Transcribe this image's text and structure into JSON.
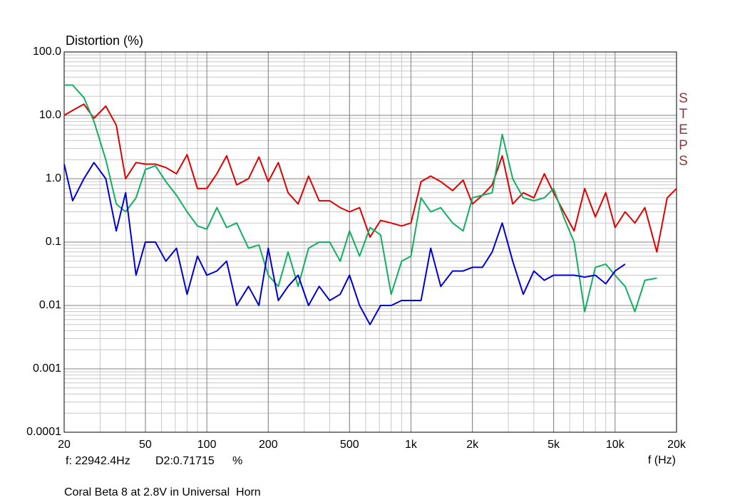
{
  "chart_data": {
    "type": "line",
    "title": "Distortion (%)",
    "x_label": "f (Hz)",
    "watermark": "STEPS",
    "cursor_freq": "f: 22942.4Hz",
    "cursor_value": "D2:0.71715",
    "cursor_unit": "%",
    "caption": "Coral Beta 8 at 2.8V in Universal  Horn",
    "x_log": true,
    "y_log": true,
    "grid": true,
    "minor_grid": true,
    "xlim": [
      20,
      20000
    ],
    "ylim": [
      0.0001,
      100
    ],
    "xticks": [
      20,
      50,
      100,
      200,
      500,
      {
        "value": 1000,
        "label": "1k"
      },
      {
        "value": 2000,
        "label": "2k"
      },
      {
        "value": 5000,
        "label": "5k"
      },
      {
        "value": 10000,
        "label": "10k"
      },
      {
        "value": 20000,
        "label": "20k"
      }
    ],
    "yticks": [
      0.0001,
      0.001,
      0.01,
      0.1,
      {
        "value": 1,
        "label": "1.0"
      },
      {
        "value": 10,
        "label": "10.0"
      },
      {
        "value": 100,
        "label": "100.0"
      }
    ],
    "x": [
      20,
      22,
      25,
      28,
      32,
      36,
      40,
      45,
      50,
      56,
      63,
      71,
      80,
      90,
      100,
      112,
      125,
      140,
      160,
      180,
      200,
      224,
      250,
      280,
      315,
      355,
      400,
      450,
      500,
      560,
      630,
      710,
      800,
      900,
      1000,
      1120,
      1250,
      1400,
      1600,
      1800,
      2000,
      2240,
      2500,
      2800,
      3150,
      3550,
      4000,
      4500,
      5000,
      5600,
      6300,
      7100,
      8000,
      9000,
      10000,
      11200,
      12500,
      14000,
      16000,
      18000,
      20000
    ],
    "series": [
      {
        "color": "#e00000",
        "values": [
          10,
          12,
          15,
          9,
          14,
          7,
          1.0,
          1.8,
          1.7,
          1.7,
          1.5,
          1.2,
          2.4,
          0.7,
          0.7,
          1.2,
          2.3,
          0.8,
          1.0,
          2.2,
          0.9,
          1.8,
          0.6,
          0.4,
          1.1,
          0.45,
          0.45,
          0.35,
          0.3,
          0.35,
          0.12,
          0.22,
          0.2,
          0.18,
          0.2,
          0.9,
          1.1,
          0.9,
          0.65,
          0.95,
          0.4,
          0.55,
          0.8,
          2.3,
          0.4,
          0.6,
          0.5,
          1.2,
          0.6,
          0.3,
          0.15,
          0.7,
          0.25,
          0.6,
          0.17,
          0.3,
          0.2,
          0.35,
          0.07,
          0.5,
          0.7
        ]
      },
      {
        "color": "#10b060",
        "values": [
          30,
          30,
          19,
          8,
          2,
          0.4,
          0.3,
          0.5,
          1.4,
          1.6,
          0.9,
          0.55,
          0.3,
          0.18,
          0.16,
          0.35,
          0.17,
          0.2,
          0.08,
          0.09,
          0.03,
          0.02,
          0.07,
          0.02,
          0.08,
          0.1,
          0.1,
          0.05,
          0.15,
          0.06,
          0.17,
          0.13,
          0.015,
          0.05,
          0.06,
          0.5,
          0.3,
          0.35,
          0.2,
          0.15,
          0.5,
          0.55,
          0.6,
          5.0,
          1.0,
          0.5,
          0.45,
          0.5,
          0.7,
          0.25,
          0.1,
          0.008,
          0.04,
          0.045,
          0.03,
          0.02,
          0.008,
          0.025,
          0.027,
          null,
          null
        ]
      },
      {
        "color": "#0000d0",
        "values": [
          1.7,
          0.45,
          1.0,
          1.8,
          1.0,
          0.15,
          0.6,
          0.03,
          0.1,
          0.1,
          0.05,
          0.08,
          0.015,
          0.06,
          0.03,
          0.035,
          0.05,
          0.01,
          0.02,
          0.01,
          0.08,
          0.012,
          0.02,
          0.03,
          0.01,
          0.02,
          0.012,
          0.015,
          0.03,
          0.01,
          0.005,
          0.01,
          0.01,
          0.012,
          0.012,
          0.012,
          0.08,
          0.02,
          0.035,
          0.035,
          0.04,
          0.04,
          0.07,
          0.2,
          0.05,
          0.015,
          0.035,
          0.025,
          0.03,
          0.03,
          0.03,
          0.028,
          0.03,
          0.022,
          0.035,
          0.045,
          null,
          null,
          null,
          null,
          null
        ]
      }
    ]
  }
}
